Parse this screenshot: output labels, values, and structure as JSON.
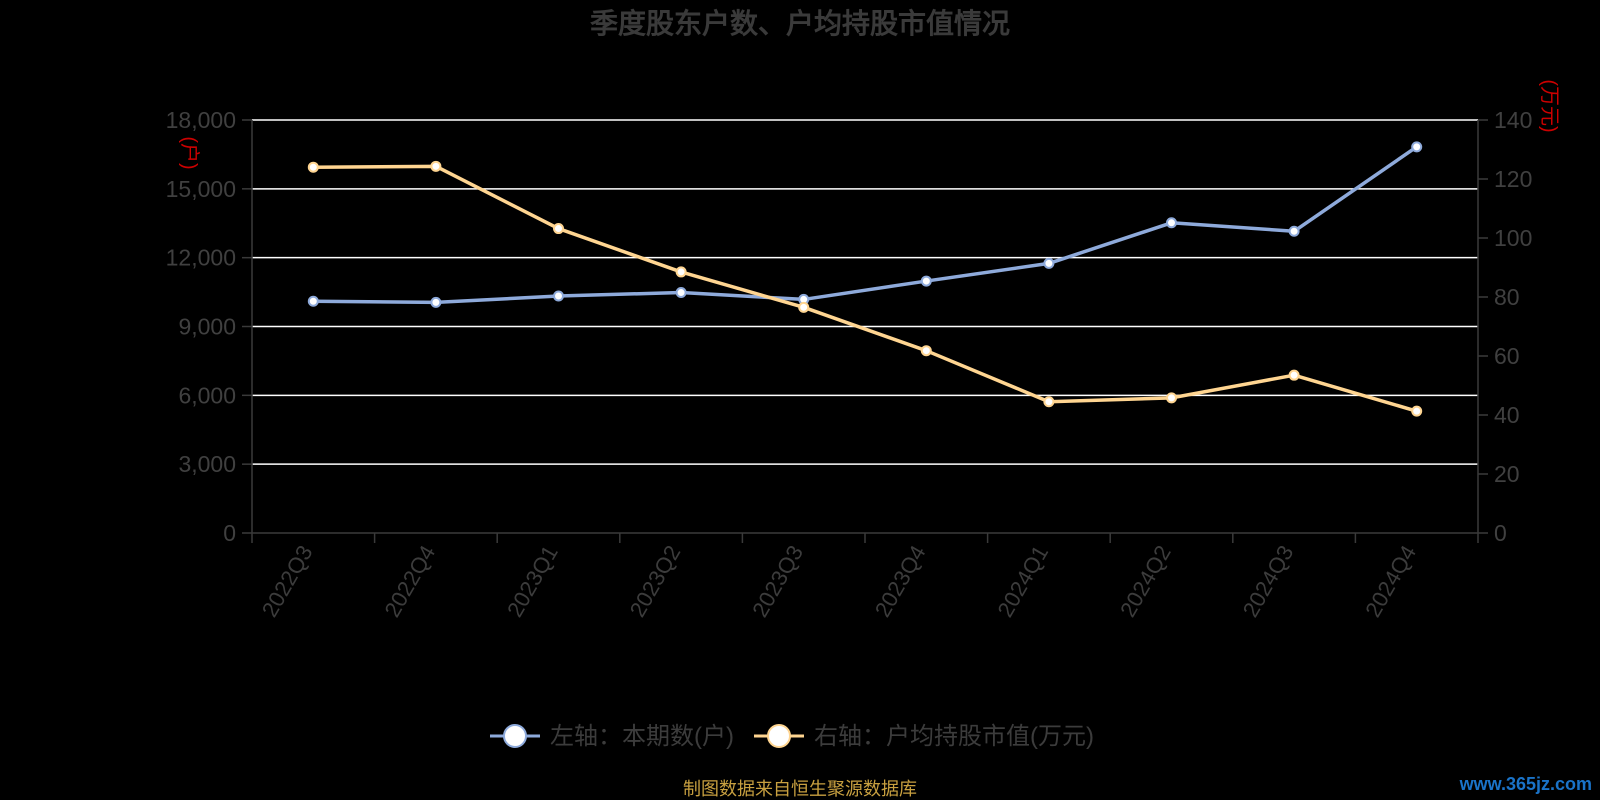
{
  "title": "季度股东户数、户均持股市值情况",
  "source": "制图数据来自恒生聚源数据库",
  "watermark": "www.365jz.com",
  "left_axis_unit": "(户)",
  "right_axis_unit": "(万元)",
  "colors": {
    "series_left": "#8eaadb",
    "series_right": "#ffd591",
    "gridline": "#ffffff",
    "axis": "#3a3a3a",
    "unit": "#cc0000"
  },
  "chart_data": {
    "type": "line",
    "title": "季度股东户数、户均持股市值情况",
    "categories": [
      "2022Q3",
      "2022Q4",
      "2023Q1",
      "2023Q2",
      "2023Q3",
      "2023Q4",
      "2024Q1",
      "2024Q2",
      "2024Q3",
      "2024Q4"
    ],
    "series": [
      {
        "name": "左轴：本期数(户)",
        "axis": "left",
        "values": [
          10100,
          10050,
          10330,
          10480,
          10180,
          10980,
          11750,
          13520,
          13150,
          16830
        ]
      },
      {
        "name": "右轴：户均持股市值(万元)",
        "axis": "right",
        "values": [
          124,
          124.3,
          103.2,
          88.5,
          76.5,
          61.8,
          44.5,
          45.8,
          53.5,
          41.3
        ]
      }
    ],
    "left_axis": {
      "min": 0,
      "max": 18000,
      "ticks": [
        "0",
        "3,000",
        "6,000",
        "9,000",
        "12,000",
        "15,000",
        "18,000"
      ]
    },
    "right_axis": {
      "min": 0,
      "max": 140,
      "ticks": [
        "0",
        "20",
        "40",
        "60",
        "80",
        "100",
        "120",
        "140"
      ]
    },
    "grid": true,
    "legend_position": "bottom"
  }
}
